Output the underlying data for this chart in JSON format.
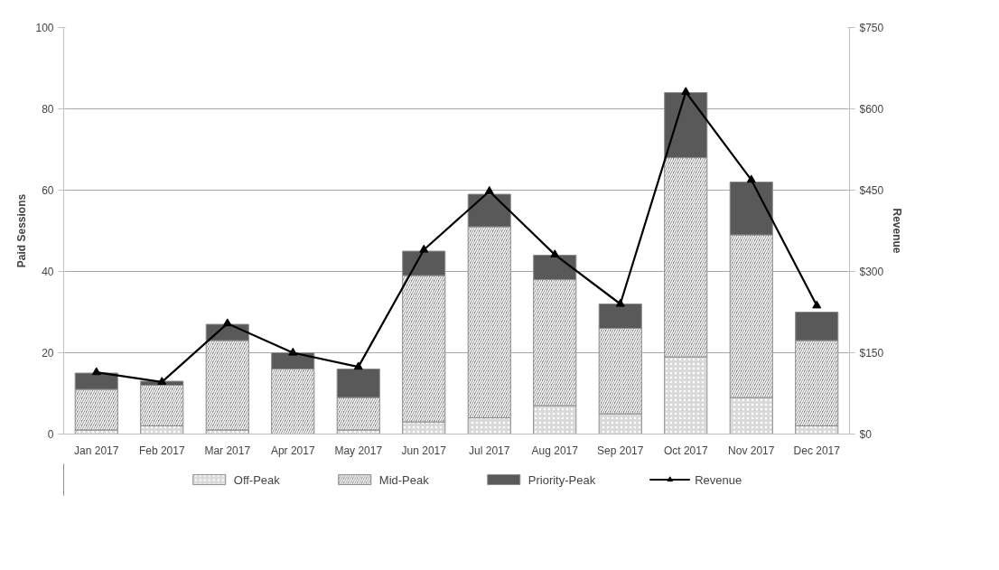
{
  "chart_data": {
    "type": "bar",
    "stacked": true,
    "categories": [
      "Jan 2017",
      "Feb 2017",
      "Mar 2017",
      "Apr 2017",
      "May 2017",
      "Jun 2017",
      "Jul 2017",
      "Aug 2017",
      "Sep 2017",
      "Oct 2017",
      "Nov 2017",
      "Dec 2017"
    ],
    "ylabel": "Paid Sessions",
    "y2label": "Revenue",
    "ylim": [
      0,
      100
    ],
    "yticks": [
      0,
      20,
      40,
      60,
      80,
      100
    ],
    "y2lim": [
      0,
      750
    ],
    "y2ticks": [
      {
        "value": 0,
        "label": "$0"
      },
      {
        "value": 150,
        "label": "$150"
      },
      {
        "value": 300,
        "label": "$300"
      },
      {
        "value": 450,
        "label": "$450"
      },
      {
        "value": 600,
        "label": "$600"
      },
      {
        "value": 750,
        "label": "$750"
      }
    ],
    "grid": "y",
    "legend": "bottom",
    "series": [
      {
        "name": "Off-Peak",
        "color": "#d9d9d9",
        "values": [
          1,
          2,
          1,
          0,
          1,
          3,
          4,
          7,
          5,
          19,
          9,
          2
        ]
      },
      {
        "name": "Mid-Peak",
        "color": "#808080",
        "values": [
          10,
          10,
          22,
          16,
          8,
          36,
          47,
          31,
          21,
          49,
          40,
          21
        ]
      },
      {
        "name": "Priority-Peak",
        "color": "#595959",
        "values": [
          4,
          1,
          4,
          4,
          7,
          6,
          8,
          6,
          6,
          16,
          13,
          7
        ]
      },
      {
        "name": "Revenue",
        "type": "line",
        "axis": "y2",
        "color": "#000000",
        "marker": "triangle",
        "values": [
          114,
          96,
          204,
          150,
          124,
          340,
          448,
          331,
          240,
          631,
          469,
          237
        ]
      }
    ]
  }
}
